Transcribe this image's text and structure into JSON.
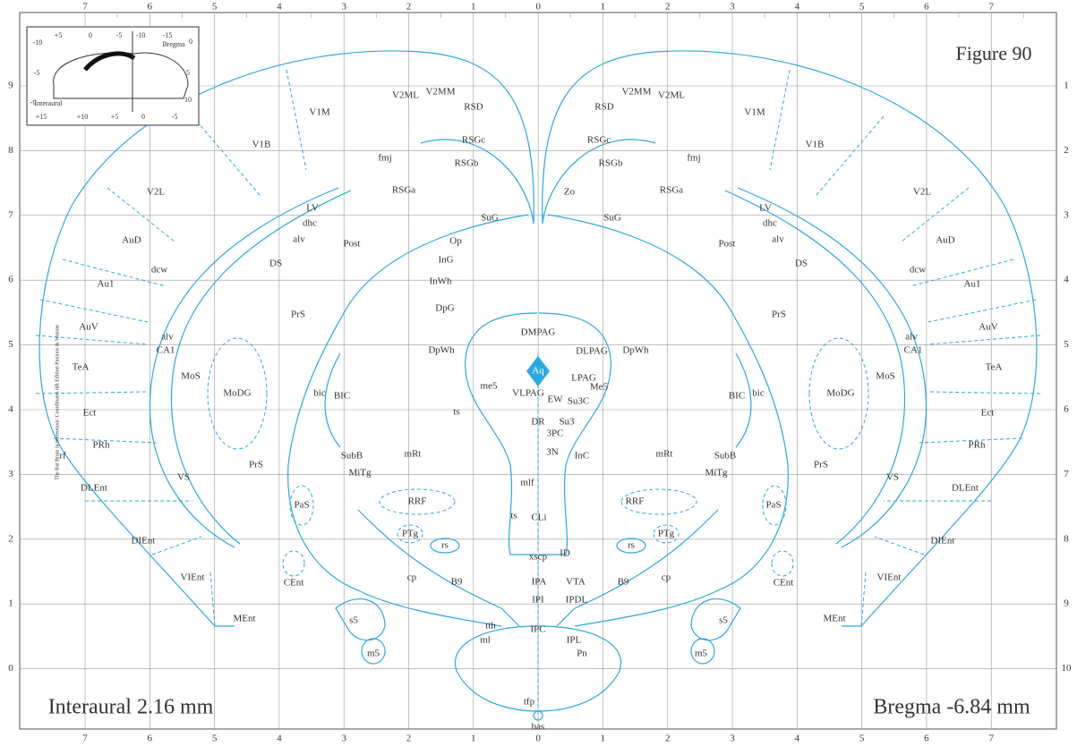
{
  "title": "Figure 90",
  "interaural": "Interaural 2.16 mm",
  "bregma": "Bregma -6.84 mm",
  "top_scale": [
    "7",
    "6",
    "5",
    "4",
    "3",
    "2",
    "1",
    "0",
    "1",
    "2",
    "3",
    "4",
    "5",
    "6",
    "7"
  ],
  "left_scale": [
    "9",
    "8",
    "7",
    "6",
    "5",
    "4",
    "3",
    "2",
    "1",
    "0"
  ],
  "right_scale": [
    "1",
    "2",
    "3",
    "4",
    "5",
    "6",
    "7",
    "8",
    "9",
    "10"
  ],
  "side_credit": "The Rat Brain in Stereotaxic Coordinates 6th Edition Paxinos & Watson",
  "aqueduct": "Aq",
  "inset_labels": [
    "+5",
    "0",
    "-5",
    "-10",
    "-15",
    "Bregma",
    "-10",
    "-5",
    "-0",
    "0",
    "5",
    "10",
    "Interaural",
    "+15",
    "+10",
    "+5",
    "0",
    "-5"
  ],
  "regions": [
    "V1M",
    "V2ML",
    "V2MM",
    "RSD",
    "RSGc",
    "RSGb",
    "RSGa",
    "V1B",
    "fmj",
    "V2L",
    "LV",
    "dhc",
    "alv",
    "AuD",
    "dcw",
    "DS",
    "Post",
    "Au1",
    "PrS",
    "AuV",
    "alv",
    "CA1",
    "TeA",
    "MoS",
    "MoDG",
    "bic",
    "BIC",
    "Ect",
    "PRh",
    "rf",
    "SubB",
    "MiTg",
    "PrS",
    "VS",
    "DLEnt",
    "PaS",
    "RRF",
    "mRt",
    "DIEnt",
    "PTg",
    "rs",
    "VIEnt",
    "cp",
    "B9",
    "CEnt",
    "MEnt",
    "s5",
    "m5",
    "tth",
    "ml",
    "SuG",
    "SuG",
    "Zo",
    "Op",
    "InG",
    "InWh",
    "DpG",
    "DpWh",
    "DMPAG",
    "DLPAG",
    "DpWh",
    "LPAG",
    "Me5",
    "me5",
    "VLPAG",
    "EW",
    "Su3C",
    "DR",
    "Su3",
    "3PC",
    "3N",
    "InC",
    "ts",
    "mlf",
    "ts",
    "CLi",
    "xscp",
    "ID",
    "IPA",
    "VTA",
    "IPI",
    "IPDL",
    "IPC",
    "IPL",
    "Pn",
    "tfp",
    "bas",
    "V2MM",
    "V2ML",
    "RSD",
    "V1M",
    "RSGc",
    "fmj",
    "RSGb",
    "V1B",
    "RSGa",
    "V2L",
    "LV",
    "dhc",
    "alv",
    "AuD",
    "Post",
    "DS",
    "dcw",
    "Au1",
    "PrS",
    "AuV",
    "alv",
    "CA1",
    "TeA",
    "MoS",
    "MoDG",
    "BIC",
    "bic",
    "Ect",
    "PRh",
    "SubB",
    "MiTg",
    "mRt",
    "PrS",
    "VS",
    "DLEnt",
    "PaS",
    "RRF",
    "DIEnt",
    "PTg",
    "rs",
    "cp",
    "B9",
    "CEnt",
    "VIEnt",
    "MEnt",
    "s5",
    "m5"
  ]
}
